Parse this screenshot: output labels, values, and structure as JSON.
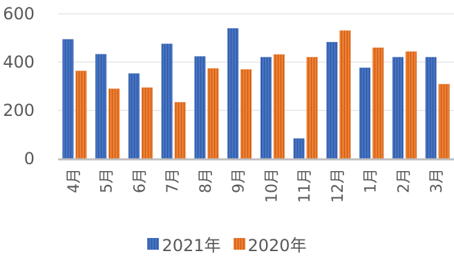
{
  "chart_data": {
    "type": "bar",
    "categories": [
      "4月",
      "5月",
      "6月",
      "7月",
      "8月",
      "9月",
      "10月",
      "11月",
      "12月",
      "1月",
      "2月",
      "3月"
    ],
    "series": [
      {
        "name": "2021年",
        "color": "#4472C4",
        "values": [
          495,
          433,
          353,
          476,
          424,
          540,
          421,
          84,
          483,
          377,
          421,
          421
        ]
      },
      {
        "name": "2020年",
        "color": "#ED7D31",
        "values": [
          364,
          290,
          295,
          234,
          374,
          370,
          432,
          421,
          531,
          460,
          444,
          309
        ]
      }
    ],
    "yticks": [
      "0",
      "200",
      "400",
      "600"
    ],
    "ylim": [
      0,
      600
    ],
    "grid": true,
    "legend_position": "bottom"
  }
}
